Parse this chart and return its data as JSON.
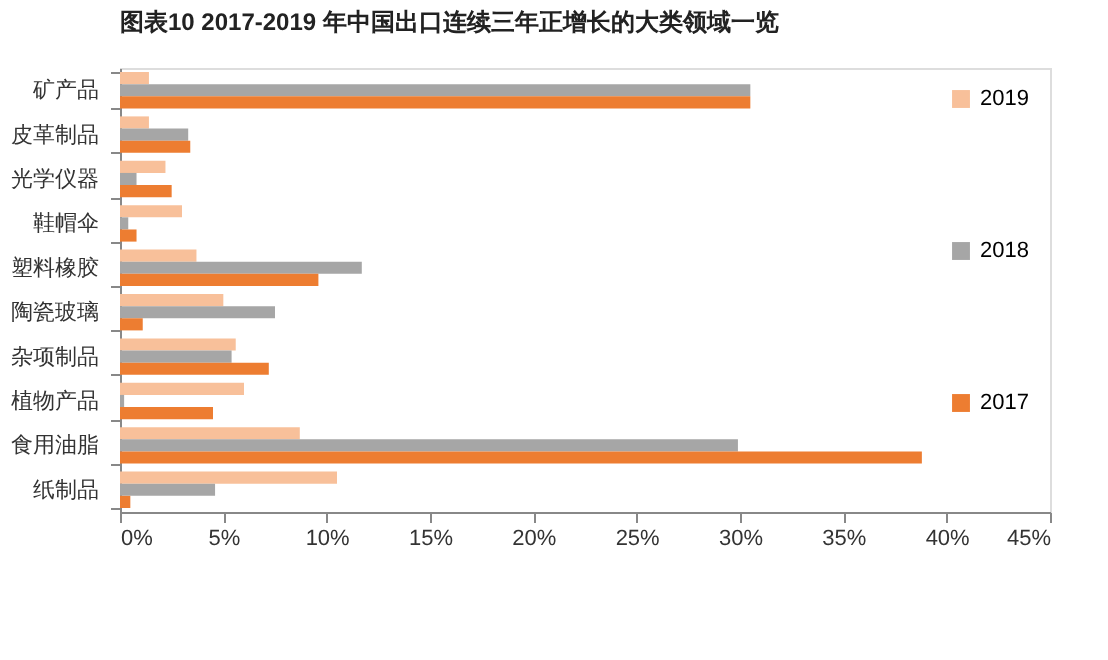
{
  "chart_data": {
    "type": "bar",
    "orientation": "horizontal",
    "title": "图表10    2017-2019 年中国出口连续三年正增长的大类领域一览",
    "categories": [
      "矿产品",
      "皮革制品",
      "光学仪器",
      "鞋帽伞",
      "塑料橡胶",
      "陶瓷玻璃",
      "杂项制品",
      "植物产品",
      "食用油脂",
      "纸制品"
    ],
    "series": [
      {
        "name": "2019",
        "color": "#f8c09a",
        "values": [
          1.4,
          1.4,
          2.2,
          3.0,
          3.7,
          5.0,
          5.6,
          6.0,
          8.7,
          10.5
        ]
      },
      {
        "name": "2018",
        "color": "#a6a6a6",
        "values": [
          30.5,
          3.3,
          0.8,
          0.4,
          11.7,
          7.5,
          5.4,
          0.2,
          29.9,
          4.6
        ]
      },
      {
        "name": "2017",
        "color": "#ed7d31",
        "values": [
          30.5,
          3.4,
          2.5,
          0.8,
          9.6,
          1.1,
          7.2,
          4.5,
          38.8,
          0.5
        ]
      }
    ],
    "xlim": [
      0,
      45
    ],
    "xticks": [
      {
        "value": 0,
        "label": "0%"
      },
      {
        "value": 5,
        "label": "5%"
      },
      {
        "value": 10,
        "label": "10%"
      },
      {
        "value": 15,
        "label": "15%"
      },
      {
        "value": 20,
        "label": "20%"
      },
      {
        "value": 25,
        "label": "25%"
      },
      {
        "value": 30,
        "label": "30%"
      },
      {
        "value": 35,
        "label": "35%"
      },
      {
        "value": 40,
        "label": "40%"
      },
      {
        "value": 45,
        "label": "45%"
      }
    ],
    "grid": false,
    "legend": "right"
  }
}
